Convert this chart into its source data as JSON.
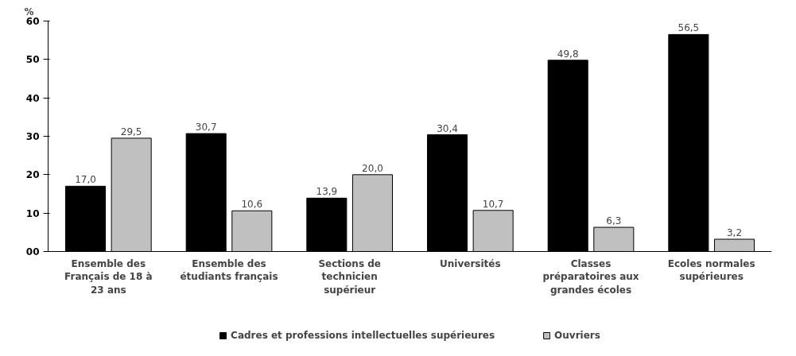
{
  "chart_data": {
    "type": "bar",
    "ylabel": "%",
    "categories": [
      "Ensemble des Français de 18 à 23 ans",
      "Ensemble des étudiants français",
      "Sections de technicien supérieur",
      "Universités",
      "Classes préparatoires aux grandes écoles",
      "Ecoles normales supérieures"
    ],
    "series": [
      {
        "name": "Cadres et professions intellectuelles supérieures",
        "color": "#000000",
        "values": [
          17.0,
          30.7,
          13.9,
          30.4,
          49.8,
          56.5
        ],
        "value_labels": [
          "17,0",
          "30,7",
          "13,9",
          "30,4",
          "49,8",
          "56,5"
        ]
      },
      {
        "name": "Ouvriers",
        "color": "#c0c0c0",
        "values": [
          29.5,
          10.6,
          20.0,
          10.7,
          6.3,
          3.2
        ],
        "value_labels": [
          "29,5",
          "10,6",
          "20,0",
          "10,7",
          "6,3",
          "3,2"
        ]
      }
    ],
    "ylim": [
      0,
      60
    ],
    "yticks": [
      {
        "value": 0,
        "label": "00"
      },
      10,
      20,
      30,
      40,
      50,
      60
    ],
    "grid": false,
    "legend": "bottom"
  }
}
